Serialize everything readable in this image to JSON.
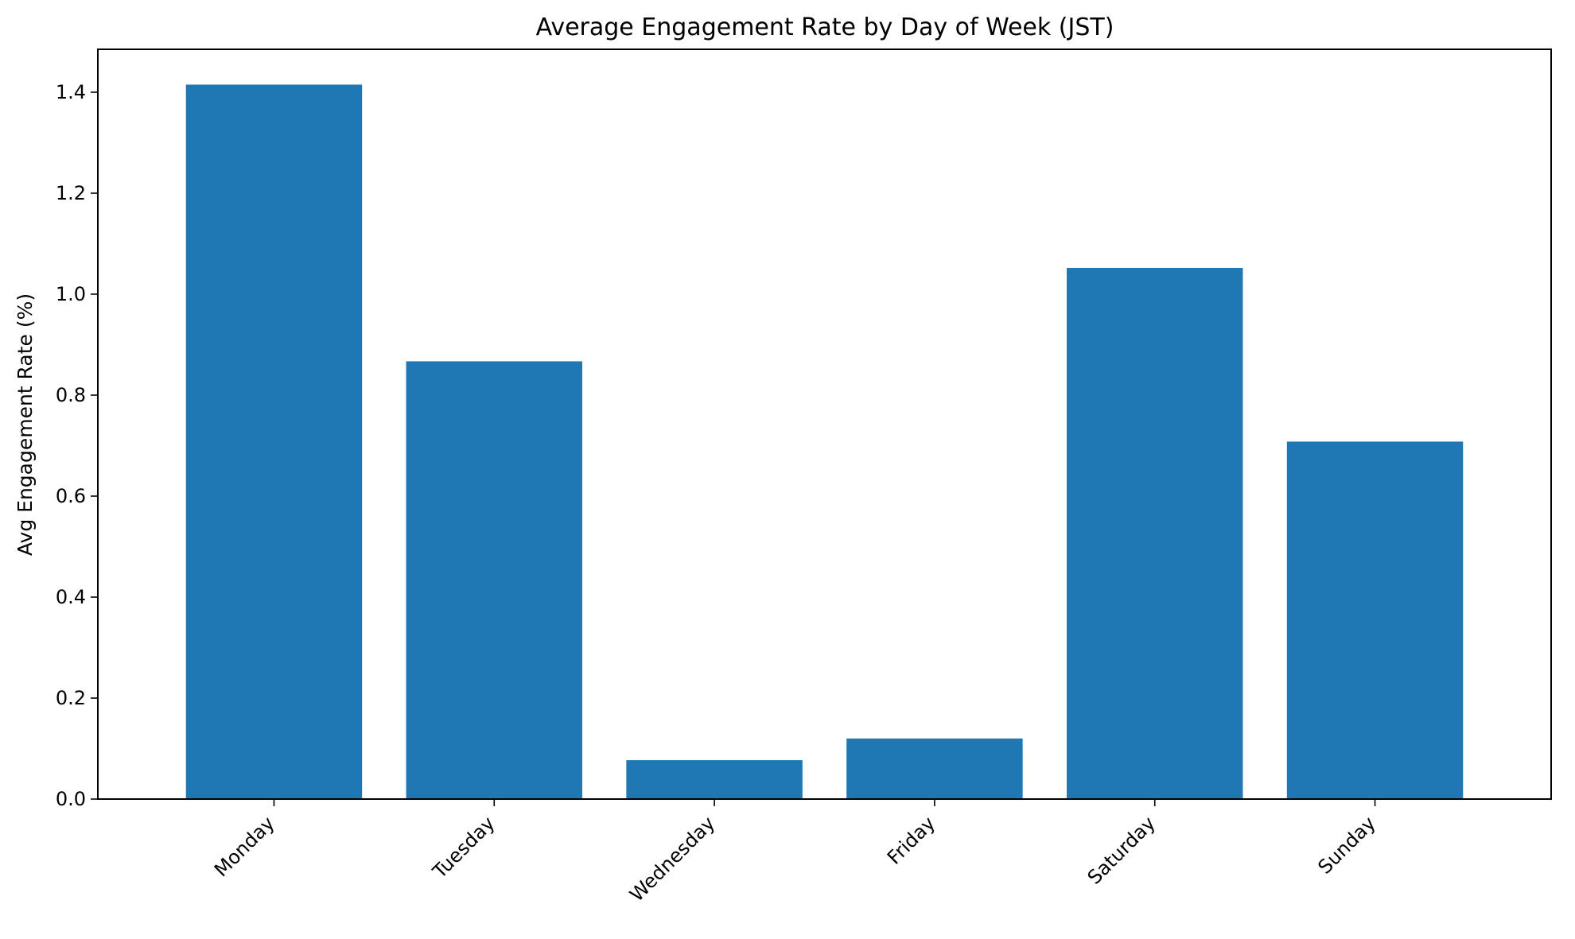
{
  "chart_data": {
    "type": "bar",
    "title": "Average Engagement Rate by Day of Week (JST)",
    "xlabel": "",
    "ylabel": "Avg Engagement Rate (%)",
    "categories": [
      "Monday",
      "Tuesday",
      "Wednesday",
      "Friday",
      "Saturday",
      "Sunday"
    ],
    "values": [
      1.415,
      0.867,
      0.077,
      0.12,
      1.052,
      0.708
    ],
    "ylim": [
      0,
      1.485
    ],
    "yticks": [
      0.0,
      0.2,
      0.4,
      0.6,
      0.8,
      1.0,
      1.2,
      1.4
    ],
    "ytick_labels": [
      "0.0",
      "0.2",
      "0.4",
      "0.6",
      "0.8",
      "1.0",
      "1.2",
      "1.4"
    ],
    "bar_color": "#1f77b4",
    "grid": false,
    "legend": "none"
  }
}
